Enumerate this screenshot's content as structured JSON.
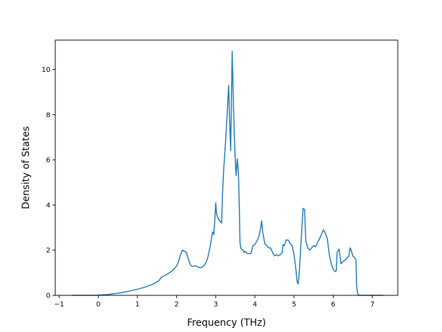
{
  "chart_data": {
    "type": "line",
    "title": "",
    "xlabel": "Frequency (THz)",
    "ylabel": "Density of States",
    "xlim": [
      -1.1,
      7.65
    ],
    "ylim": [
      0,
      11.3
    ],
    "grid": false,
    "legend": "none",
    "x_ticks": [
      -1,
      0,
      1,
      2,
      3,
      4,
      5,
      6,
      7
    ],
    "y_ticks": [
      0,
      2,
      4,
      6,
      8,
      10
    ],
    "series": [
      {
        "color": "#1f77b4",
        "x": [
          -0.68,
          -0.4,
          -0.2,
          0.0,
          0.2,
          0.4,
          0.6,
          0.8,
          1.0,
          1.2,
          1.4,
          1.55,
          1.6,
          1.63,
          1.7,
          1.8,
          1.9,
          2.0,
          2.05,
          2.1,
          2.15,
          2.2,
          2.25,
          2.3,
          2.35,
          2.4,
          2.45,
          2.5,
          2.55,
          2.6,
          2.65,
          2.7,
          2.75,
          2.8,
          2.85,
          2.88,
          2.92,
          2.95,
          2.97,
          3.0,
          3.02,
          3.05,
          3.1,
          3.15,
          3.17,
          3.2,
          3.25,
          3.3,
          3.33,
          3.35,
          3.38,
          3.42,
          3.45,
          3.48,
          3.5,
          3.52,
          3.55,
          3.58,
          3.6,
          3.62,
          3.65,
          3.7,
          3.72,
          3.75,
          3.8,
          3.85,
          3.9,
          3.95,
          4.0,
          4.05,
          4.1,
          4.15,
          4.17,
          4.2,
          4.25,
          4.3,
          4.35,
          4.4,
          4.45,
          4.5,
          4.55,
          4.6,
          4.65,
          4.7,
          4.72,
          4.75,
          4.8,
          4.85,
          4.9,
          4.95,
          5.0,
          5.05,
          5.08,
          5.1,
          5.12,
          5.15,
          5.2,
          5.23,
          5.27,
          5.3,
          5.35,
          5.4,
          5.45,
          5.5,
          5.55,
          5.6,
          5.65,
          5.7,
          5.75,
          5.8,
          5.85,
          5.9,
          5.95,
          6.0,
          6.05,
          6.08,
          6.1,
          6.15,
          6.2,
          6.25,
          6.3,
          6.35,
          6.4,
          6.43,
          6.45,
          6.5,
          6.55,
          6.58,
          6.6,
          6.62,
          6.65,
          7.0,
          7.28
        ],
        "y": [
          0.0,
          0.0,
          0.0,
          0.01,
          0.03,
          0.07,
          0.12,
          0.19,
          0.27,
          0.37,
          0.5,
          0.65,
          0.78,
          0.82,
          0.88,
          0.98,
          1.1,
          1.3,
          1.5,
          1.8,
          2.0,
          1.95,
          1.9,
          1.6,
          1.35,
          1.28,
          1.3,
          1.3,
          1.25,
          1.22,
          1.25,
          1.32,
          1.45,
          1.7,
          2.1,
          2.4,
          2.8,
          2.7,
          3.2,
          4.1,
          3.6,
          3.45,
          3.3,
          3.2,
          4.4,
          5.5,
          6.8,
          8.3,
          9.3,
          8.0,
          6.4,
          10.8,
          8.5,
          6.8,
          5.9,
          5.3,
          6.05,
          5.4,
          4.0,
          2.3,
          2.05,
          2.0,
          1.9,
          1.95,
          1.85,
          1.85,
          1.85,
          2.2,
          2.25,
          2.4,
          2.6,
          3.0,
          3.3,
          2.8,
          2.3,
          2.2,
          2.1,
          2.1,
          1.9,
          1.75,
          1.8,
          1.75,
          1.8,
          1.9,
          2.25,
          2.2,
          2.45,
          2.45,
          2.3,
          2.2,
          1.8,
          1.1,
          0.6,
          0.5,
          0.7,
          1.5,
          3.0,
          3.85,
          3.8,
          2.4,
          2.1,
          2.0,
          2.1,
          2.2,
          2.15,
          2.35,
          2.5,
          2.7,
          2.9,
          2.75,
          2.5,
          1.8,
          1.4,
          1.15,
          1.05,
          1.1,
          1.9,
          2.05,
          1.4,
          1.5,
          1.55,
          1.65,
          1.75,
          2.1,
          2.05,
          1.75,
          1.65,
          1.6,
          0.4,
          0.1,
          0.0,
          0.0,
          0.0
        ]
      }
    ]
  }
}
